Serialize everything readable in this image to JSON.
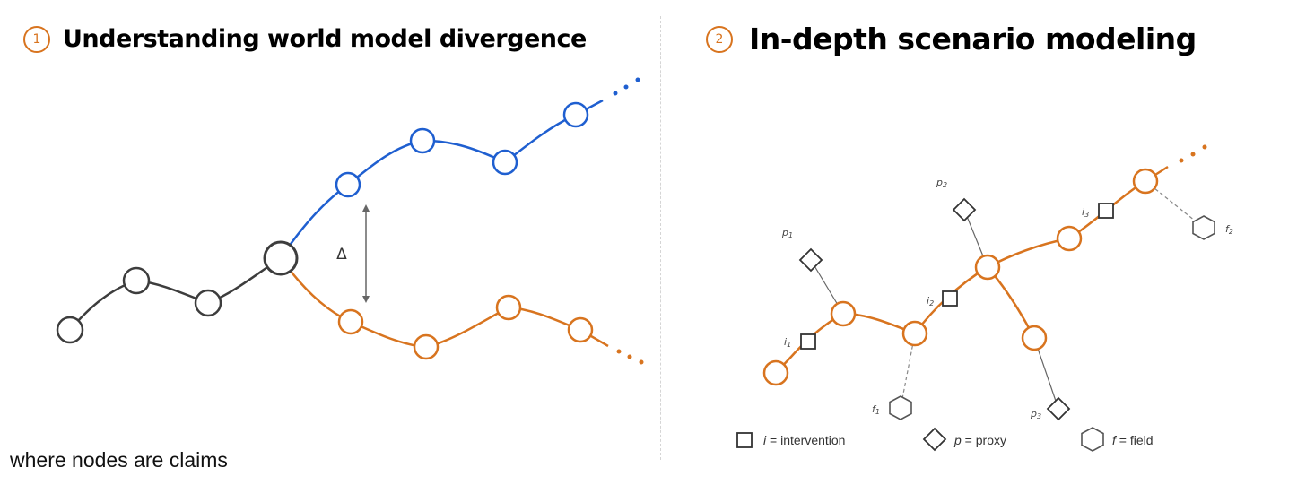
{
  "panels": [
    {
      "number": "1",
      "title": "Understanding world model divergence"
    },
    {
      "number": "2",
      "title": "In-depth scenario modeling"
    }
  ],
  "panel1": {
    "delta_label": "Δ"
  },
  "panel2": {
    "labels": {
      "p1": "p",
      "p1_sub": "1",
      "p2": "p",
      "p2_sub": "2",
      "p3": "p",
      "p3_sub": "3",
      "i1": "i",
      "i1_sub": "1",
      "i2": "i",
      "i2_sub": "2",
      "i3": "i",
      "i3_sub": "3",
      "f1": "f",
      "f1_sub": "1",
      "f2": "f",
      "f2_sub": "2"
    },
    "legend": [
      {
        "symbol": "square-icon",
        "var": "i",
        "text": " = intervention"
      },
      {
        "symbol": "diamond-icon",
        "var": "p",
        "text": " = proxy"
      },
      {
        "symbol": "hexagon-icon",
        "var": "f",
        "text": " = field"
      }
    ]
  },
  "caption": "where nodes are claims",
  "colors": {
    "accent_orange": "#d8741f",
    "accent_blue": "#1f5fd0",
    "node_dark": "#3d3d3d",
    "symbol_gray": "#555555"
  }
}
